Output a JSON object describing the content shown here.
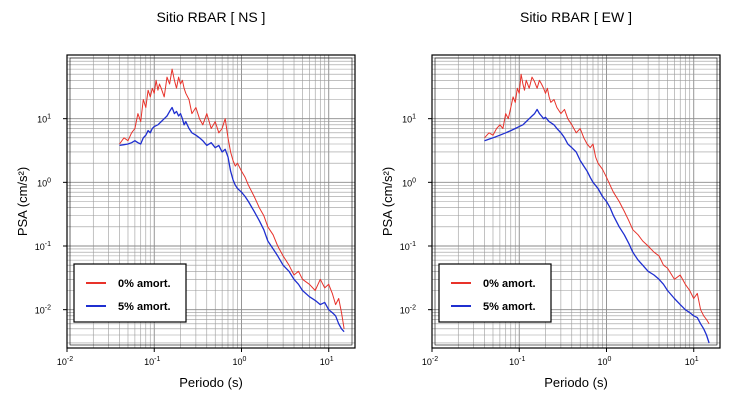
{
  "chart_data": [
    {
      "type": "line",
      "title": "Sitio RBAR [ NS ]",
      "xlabel": "Periodo (s)",
      "ylabel": "PSA (cm/s²)",
      "x_scale": "log",
      "y_scale": "log",
      "xlim": [
        0.01,
        20
      ],
      "ylim": [
        0.0025,
        100
      ],
      "grid": true,
      "legend_position": "bottom-left",
      "x_ticks": [
        {
          "value": 0.01,
          "base": "10",
          "exp": "-2"
        },
        {
          "value": 0.1,
          "base": "10",
          "exp": "-1"
        },
        {
          "value": 1,
          "base": "10",
          "exp": "0"
        },
        {
          "value": 10,
          "base": "10",
          "exp": "1"
        }
      ],
      "y_ticks": [
        {
          "value": 0.01,
          "base": "10",
          "exp": "-2"
        },
        {
          "value": 0.1,
          "base": "10",
          "exp": "-1"
        },
        {
          "value": 1,
          "base": "10",
          "exp": "0"
        },
        {
          "value": 10,
          "base": "10",
          "exp": "1"
        }
      ],
      "series": [
        {
          "name": "0% amort.",
          "color": "#e8322a",
          "x": [
            0.04,
            0.045,
            0.05,
            0.055,
            0.06,
            0.065,
            0.07,
            0.075,
            0.08,
            0.085,
            0.09,
            0.095,
            0.1,
            0.105,
            0.11,
            0.115,
            0.12,
            0.13,
            0.14,
            0.15,
            0.16,
            0.17,
            0.18,
            0.19,
            0.2,
            0.21,
            0.22,
            0.23,
            0.25,
            0.27,
            0.3,
            0.33,
            0.36,
            0.4,
            0.45,
            0.5,
            0.55,
            0.6,
            0.65,
            0.7,
            0.75,
            0.8,
            0.85,
            0.9,
            1.0,
            1.1,
            1.2,
            1.4,
            1.6,
            1.8,
            2.0,
            2.3,
            2.6,
            3.0,
            3.5,
            4.0,
            4.5,
            5.0,
            6.0,
            7.0,
            8.0,
            9.0,
            10.0,
            11.0,
            12.0,
            13.0,
            14.0,
            15.0
          ],
          "y": [
            4.0,
            5.0,
            4.5,
            6.0,
            7.0,
            12.0,
            9.0,
            20.0,
            15.0,
            28.0,
            22.0,
            30.0,
            25.0,
            40.0,
            28.0,
            35.0,
            30.0,
            22.0,
            45.0,
            35.0,
            60.0,
            40.0,
            30.0,
            45.0,
            35.0,
            40.0,
            30.0,
            25.0,
            20.0,
            12.0,
            15.0,
            10.0,
            8.0,
            12.0,
            7.0,
            9.0,
            6.0,
            7.0,
            10.0,
            5.0,
            3.0,
            2.2,
            1.8,
            2.0,
            1.5,
            1.2,
            0.9,
            0.6,
            0.4,
            0.3,
            0.2,
            0.15,
            0.1,
            0.07,
            0.05,
            0.035,
            0.04,
            0.03,
            0.025,
            0.02,
            0.03,
            0.022,
            0.025,
            0.018,
            0.012,
            0.015,
            0.009,
            0.005
          ]
        },
        {
          "name": "5% amort.",
          "color": "#1f2fd0",
          "x": [
            0.04,
            0.045,
            0.05,
            0.055,
            0.06,
            0.065,
            0.07,
            0.075,
            0.08,
            0.085,
            0.09,
            0.095,
            0.1,
            0.11,
            0.12,
            0.13,
            0.14,
            0.15,
            0.16,
            0.17,
            0.18,
            0.19,
            0.2,
            0.21,
            0.22,
            0.23,
            0.25,
            0.27,
            0.3,
            0.33,
            0.36,
            0.4,
            0.45,
            0.5,
            0.55,
            0.6,
            0.65,
            0.7,
            0.75,
            0.8,
            0.85,
            0.9,
            1.0,
            1.1,
            1.2,
            1.4,
            1.6,
            1.8,
            2.0,
            2.3,
            2.6,
            3.0,
            3.5,
            4.0,
            4.5,
            5.0,
            6.0,
            7.0,
            8.0,
            9.0,
            10.0,
            11.0,
            12.0,
            13.0,
            14.0,
            15.0
          ],
          "y": [
            3.8,
            3.9,
            4.0,
            4.2,
            4.5,
            4.2,
            4.0,
            5.0,
            5.5,
            6.5,
            6.0,
            7.0,
            7.5,
            8.0,
            9.0,
            10.0,
            11.0,
            13.0,
            15.0,
            12.0,
            13.0,
            11.0,
            12.0,
            10.0,
            8.0,
            9.0,
            7.0,
            6.0,
            5.5,
            5.0,
            4.5,
            3.8,
            4.2,
            3.5,
            3.8,
            3.0,
            3.3,
            2.5,
            1.5,
            1.1,
            0.9,
            0.8,
            0.7,
            0.6,
            0.5,
            0.35,
            0.25,
            0.18,
            0.12,
            0.09,
            0.07,
            0.05,
            0.04,
            0.03,
            0.025,
            0.02,
            0.016,
            0.014,
            0.012,
            0.013,
            0.01,
            0.009,
            0.008,
            0.006,
            0.005,
            0.0045
          ]
        }
      ]
    },
    {
      "type": "line",
      "title": "Sitio RBAR [ EW ]",
      "xlabel": "Periodo (s)",
      "ylabel": "PSA (cm/s²)",
      "x_scale": "log",
      "y_scale": "log",
      "xlim": [
        0.01,
        20
      ],
      "ylim": [
        0.0025,
        100
      ],
      "grid": true,
      "legend_position": "bottom-left",
      "x_ticks": [
        {
          "value": 0.01,
          "base": "10",
          "exp": "-2"
        },
        {
          "value": 0.1,
          "base": "10",
          "exp": "-1"
        },
        {
          "value": 1,
          "base": "10",
          "exp": "0"
        },
        {
          "value": 10,
          "base": "10",
          "exp": "1"
        }
      ],
      "y_ticks": [
        {
          "value": 0.01,
          "base": "10",
          "exp": "-2"
        },
        {
          "value": 0.1,
          "base": "10",
          "exp": "-1"
        },
        {
          "value": 1,
          "base": "10",
          "exp": "0"
        },
        {
          "value": 10,
          "base": "10",
          "exp": "1"
        }
      ],
      "series": [
        {
          "name": "0% amort.",
          "color": "#e8322a",
          "x": [
            0.04,
            0.045,
            0.05,
            0.055,
            0.06,
            0.065,
            0.07,
            0.075,
            0.08,
            0.085,
            0.09,
            0.095,
            0.1,
            0.105,
            0.11,
            0.115,
            0.12,
            0.13,
            0.14,
            0.15,
            0.16,
            0.17,
            0.18,
            0.19,
            0.2,
            0.21,
            0.22,
            0.23,
            0.25,
            0.27,
            0.3,
            0.33,
            0.36,
            0.4,
            0.45,
            0.5,
            0.55,
            0.6,
            0.65,
            0.7,
            0.75,
            0.8,
            0.9,
            1.0,
            1.1,
            1.2,
            1.4,
            1.6,
            1.8,
            2.0,
            2.3,
            2.6,
            3.0,
            3.5,
            4.0,
            4.5,
            5.0,
            6.0,
            7.0,
            8.0,
            9.0,
            10.0,
            11.0,
            12.0,
            13.0,
            14.0,
            15.0
          ],
          "y": [
            5.0,
            6.0,
            5.5,
            7.0,
            8.0,
            7.0,
            12.0,
            10.0,
            15.0,
            22.0,
            18.0,
            30.0,
            25.0,
            50.0,
            35.0,
            28.0,
            40.0,
            30.0,
            45.0,
            38.0,
            30.0,
            40.0,
            35.0,
            30.0,
            25.0,
            30.0,
            22.0,
            18.0,
            20.0,
            15.0,
            12.0,
            14.0,
            10.0,
            8.0,
            6.0,
            7.0,
            5.0,
            4.0,
            3.5,
            4.0,
            2.5,
            2.0,
            1.6,
            1.2,
            0.9,
            0.7,
            0.5,
            0.35,
            0.25,
            0.18,
            0.15,
            0.12,
            0.1,
            0.08,
            0.07,
            0.05,
            0.045,
            0.03,
            0.035,
            0.025,
            0.02,
            0.015,
            0.018,
            0.01,
            0.008,
            0.007,
            0.006
          ]
        },
        {
          "name": "5% amort.",
          "color": "#1f2fd0",
          "x": [
            0.04,
            0.05,
            0.06,
            0.07,
            0.08,
            0.09,
            0.1,
            0.11,
            0.12,
            0.13,
            0.14,
            0.15,
            0.16,
            0.17,
            0.18,
            0.19,
            0.2,
            0.22,
            0.25,
            0.27,
            0.3,
            0.33,
            0.36,
            0.4,
            0.45,
            0.5,
            0.55,
            0.6,
            0.65,
            0.7,
            0.8,
            0.9,
            1.0,
            1.1,
            1.2,
            1.4,
            1.6,
            1.8,
            2.0,
            2.3,
            2.6,
            3.0,
            3.5,
            4.0,
            4.5,
            5.0,
            6.0,
            7.0,
            8.0,
            9.0,
            10.0,
            11.0,
            12.0,
            13.0,
            14.0,
            15.0
          ],
          "y": [
            4.5,
            5.0,
            5.5,
            6.0,
            6.5,
            7.0,
            7.5,
            8.0,
            9.0,
            10.0,
            11.0,
            12.0,
            14.0,
            12.0,
            11.0,
            10.0,
            10.5,
            9.0,
            8.0,
            7.0,
            6.0,
            5.0,
            4.0,
            3.5,
            3.0,
            2.2,
            1.8,
            1.5,
            1.2,
            1.0,
            0.8,
            0.6,
            0.5,
            0.4,
            0.3,
            0.2,
            0.15,
            0.11,
            0.08,
            0.06,
            0.05,
            0.04,
            0.035,
            0.03,
            0.025,
            0.02,
            0.015,
            0.012,
            0.01,
            0.009,
            0.008,
            0.0075,
            0.006,
            0.005,
            0.004,
            0.003
          ]
        }
      ]
    }
  ]
}
